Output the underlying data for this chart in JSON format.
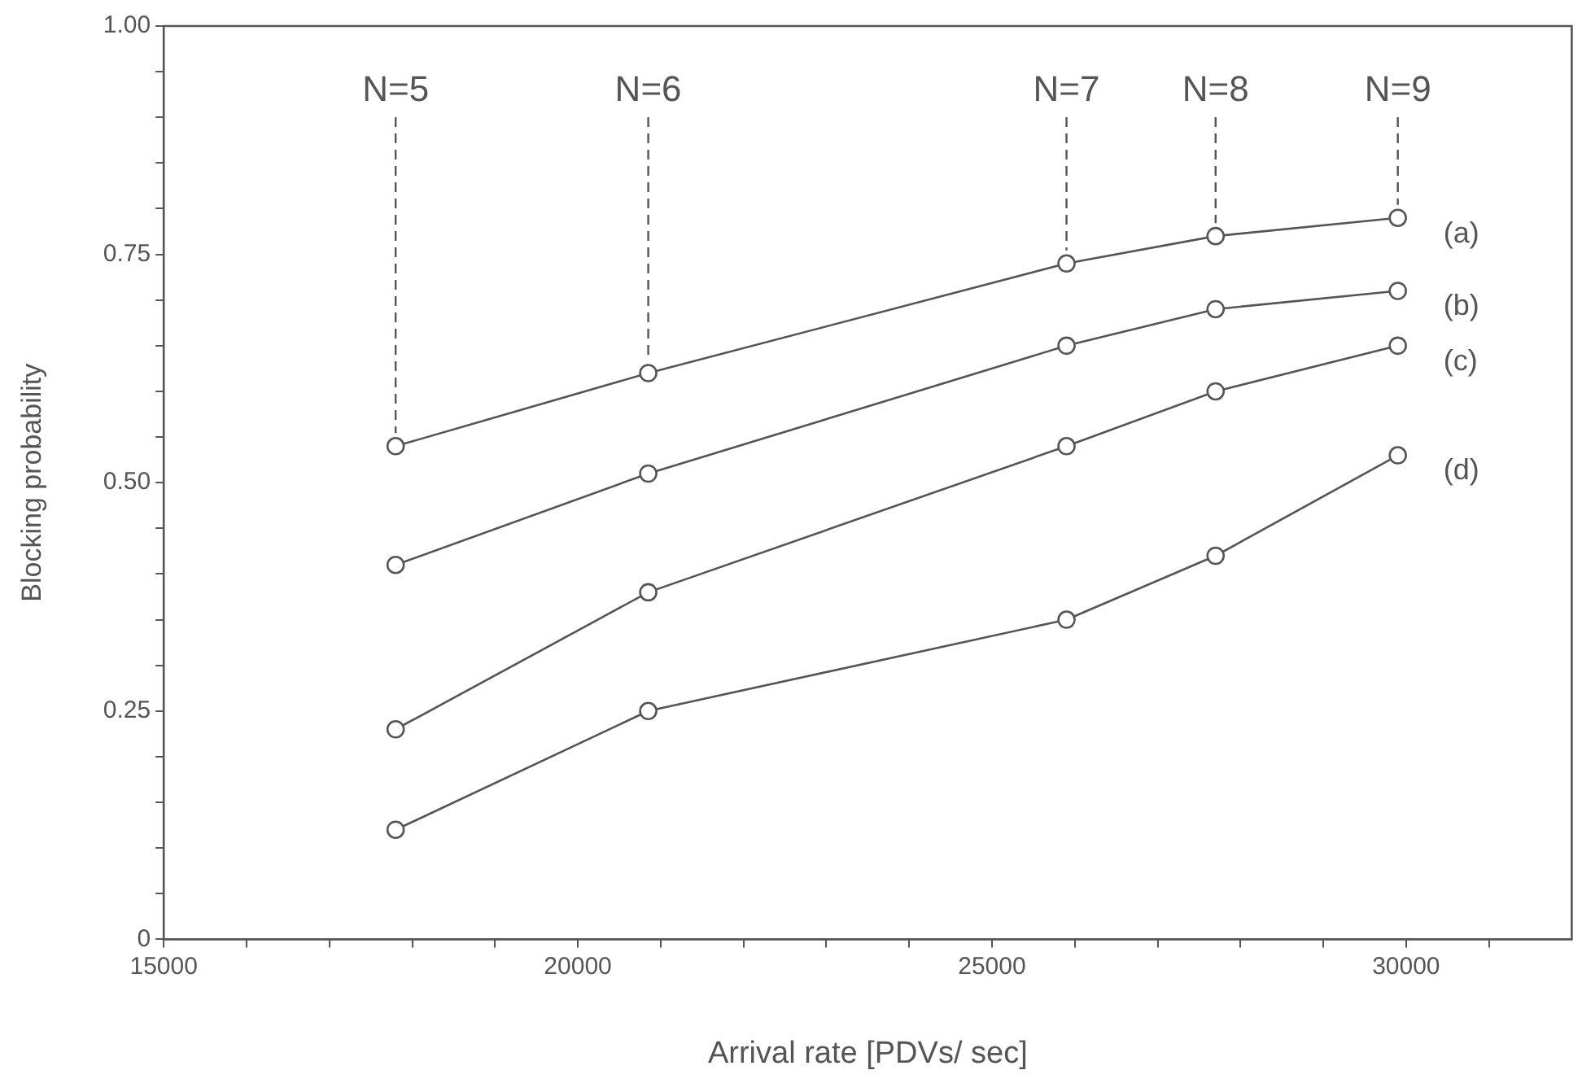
{
  "chart_data": {
    "type": "line",
    "xlabel": "Arrival rate [PDVs/ sec]",
    "ylabel": "Blocking probability",
    "x": [
      17800,
      20850,
      25900,
      27700,
      29900
    ],
    "series": [
      {
        "name": "(a)",
        "color": "#555555",
        "values": [
          0.54,
          0.62,
          0.74,
          0.77,
          0.79
        ]
      },
      {
        "name": "(b)",
        "color": "#555555",
        "values": [
          0.41,
          0.51,
          0.65,
          0.69,
          0.71
        ]
      },
      {
        "name": "(c)",
        "color": "#555555",
        "values": [
          0.23,
          0.38,
          0.54,
          0.6,
          0.65
        ]
      },
      {
        "name": "(d)",
        "color": "#555555",
        "values": [
          0.12,
          0.25,
          0.35,
          0.42,
          0.53
        ]
      }
    ],
    "xlim": [
      15000,
      32000
    ],
    "xticks": [
      15000,
      {
        "value": 16000,
        "label": null
      },
      {
        "value": 17000,
        "label": null
      },
      {
        "value": 18000,
        "label": null
      },
      {
        "value": 19000,
        "label": null
      },
      20000,
      {
        "value": 21000,
        "label": null
      },
      {
        "value": 22000,
        "label": null
      },
      {
        "value": 23000,
        "label": null
      },
      {
        "value": 24000,
        "label": null
      },
      25000,
      {
        "value": 26000,
        "label": null
      },
      {
        "value": 27000,
        "label": null
      },
      {
        "value": 28000,
        "label": null
      },
      {
        "value": 29000,
        "label": null
      },
      30000,
      {
        "value": 31000,
        "label": null
      }
    ],
    "ylim": [
      0,
      1
    ],
    "yticks": [
      0,
      {
        "value": 0.05,
        "label": null
      },
      {
        "value": 0.1,
        "label": null
      },
      {
        "value": 0.15,
        "label": null
      },
      {
        "value": 0.2,
        "label": null
      },
      {
        "value": 0.25,
        "label": "0.25"
      },
      {
        "value": 0.3,
        "label": null
      },
      {
        "value": 0.35,
        "label": null
      },
      {
        "value": 0.4,
        "label": null
      },
      {
        "value": 0.45,
        "label": null
      },
      {
        "value": 0.5,
        "label": "0.50"
      },
      {
        "value": 0.55,
        "label": null
      },
      {
        "value": 0.6,
        "label": null
      },
      {
        "value": 0.65,
        "label": null
      },
      {
        "value": 0.7,
        "label": null
      },
      {
        "value": 0.75,
        "label": "0.75"
      },
      {
        "value": 0.8,
        "label": null
      },
      {
        "value": 0.85,
        "label": null
      },
      {
        "value": 0.9,
        "label": null
      },
      {
        "value": 0.95,
        "label": null
      },
      {
        "value": 1,
        "label": "1.00"
      }
    ],
    "annotations": [
      {
        "text": "N=5",
        "x": 17800,
        "y": 0.54
      },
      {
        "text": "N=6",
        "x": 20850,
        "y": 0.62
      },
      {
        "text": "N=7",
        "x": 25900,
        "y": 0.74
      },
      {
        "text": "N=8",
        "x": 27700,
        "y": 0.77
      },
      {
        "text": "N=9",
        "x": 29900,
        "y": 0.79
      }
    ],
    "legend": false,
    "marker": "circle",
    "line_style": "solid"
  }
}
